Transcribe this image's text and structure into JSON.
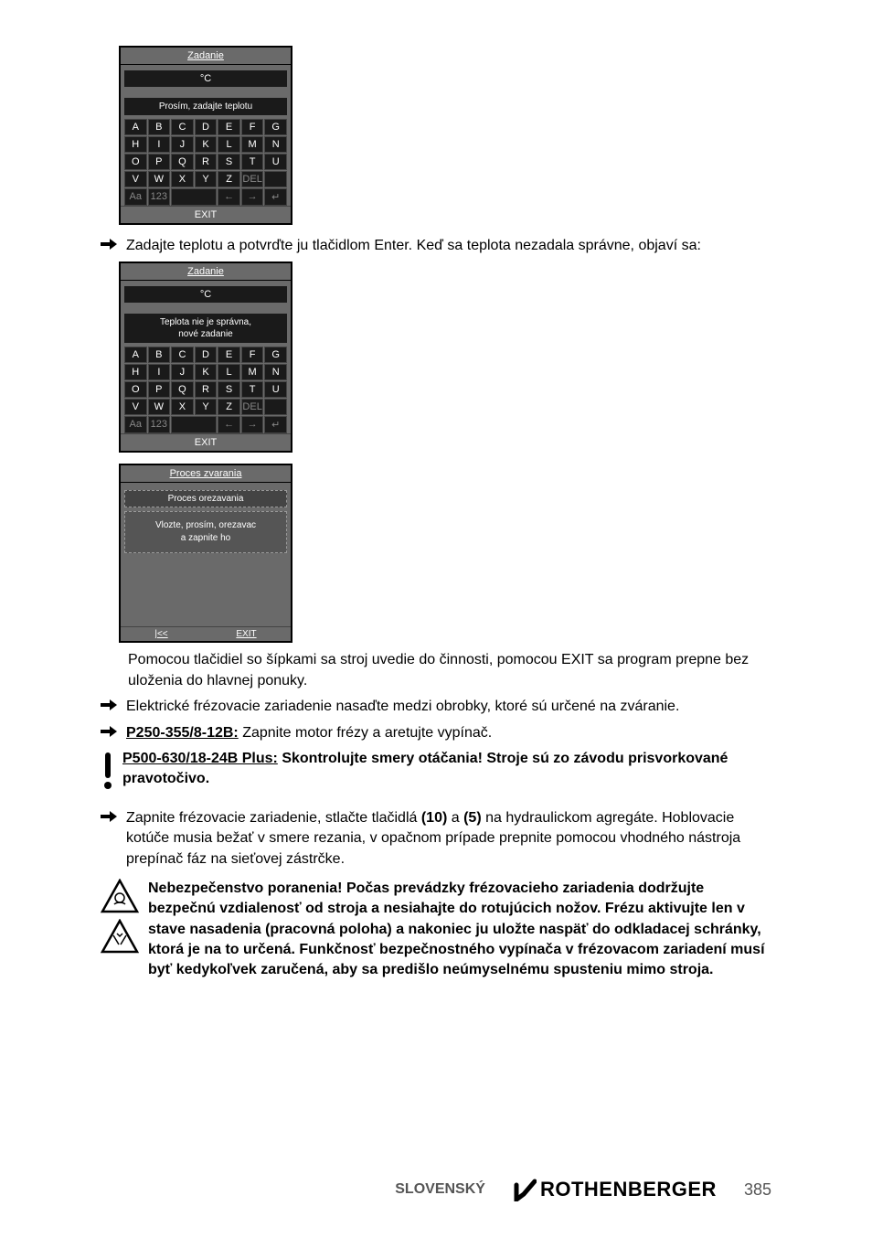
{
  "screen1": {
    "header": "Zadanie",
    "unit": "°C",
    "msg": "Prosím, zadajte teplotu",
    "rows": [
      [
        "A",
        "B",
        "C",
        "D",
        "E",
        "F",
        "G"
      ],
      [
        "H",
        "I",
        "J",
        "K",
        "L",
        "M",
        "N"
      ],
      [
        "O",
        "P",
        "Q",
        "R",
        "S",
        "T",
        "U"
      ],
      [
        "V",
        "W",
        "X",
        "Y",
        "Z",
        "DEL",
        ""
      ]
    ],
    "lastrow": [
      "Aa",
      "123",
      " ",
      "←",
      "→",
      "↵"
    ],
    "footer": "EXIT"
  },
  "line1": "Zadajte teplotu a potvrďte ju tlačidlom Enter. Keď sa teplota nezadala správne, objaví sa:",
  "screen2": {
    "header": "Zadanie",
    "unit": "°C",
    "msg": "Teplota nie je správna,\nnové zadanie",
    "rows": [
      [
        "A",
        "B",
        "C",
        "D",
        "E",
        "F",
        "G"
      ],
      [
        "H",
        "I",
        "J",
        "K",
        "L",
        "M",
        "N"
      ],
      [
        "O",
        "P",
        "Q",
        "R",
        "S",
        "T",
        "U"
      ],
      [
        "V",
        "W",
        "X",
        "Y",
        "Z",
        "DEL",
        ""
      ]
    ],
    "lastrow": [
      "Aa",
      "123",
      " ",
      "←",
      "→",
      "↵"
    ],
    "footer": "EXIT"
  },
  "screen3": {
    "header": "Proces zvarania",
    "sub": "Proces orezavania",
    "msg": "Vlozte, prosím, orezavac\na zapnite ho",
    "footer_left": "|<<",
    "footer_right": "EXIT"
  },
  "para1": "Pomocou tlačidiel so šípkami sa stroj uvedie do činnosti, pomocou EXIT sa program prepne bez uloženia do hlavnej ponuky.",
  "line2": "Elektrické frézovacie zariadenie nasaďte medzi obrobky, ktoré sú určené na zváranie.",
  "line3_b": "P250-355/8-12B:",
  "line3_t": " Zapnite motor frézy a aretujte vypínač.",
  "line4_b": "P500-630/18-24B Plus:",
  "line4_t": " Skontrolujte smery otáčania! Stroje sú zo závodu prisvorkované pravotočivo.",
  "line5_a": "Zapnite frézovacie zariadenie, stlačte tlačidlá ",
  "line5_b1": "(10)",
  "line5_c": " a ",
  "line5_b2": "(5)",
  "line5_d": " na hydraulickom agregáte. Hoblovacie kotúče musia bežať v smere rezania, v opačnom prípade prepnite pomocou vhodného nástroja prepínač fáz na sieťovej zástrčke.",
  "warning": "Nebezpečenstvo poranenia! Počas prevádzky frézovacieho zariadenia dodržujte bezpečnú vzdialenosť od stroja a nesiahajte do rotujúcich nožov. Frézu aktivujte len v stave nasadenia (pracovná poloha) a nakoniec ju uložte naspäť do odkladacej schránky, ktorá je na to určená. Funkčnosť bezpečnostného vypínača v frézovacom zariadení musí byť kedykoľvek zaručená, aby sa predišlo neúmyselnému spusteniu mimo stroja.",
  "footer": {
    "lang": "SLOVENSKÝ",
    "logo": "ROTHENBERGER",
    "page": "385"
  }
}
